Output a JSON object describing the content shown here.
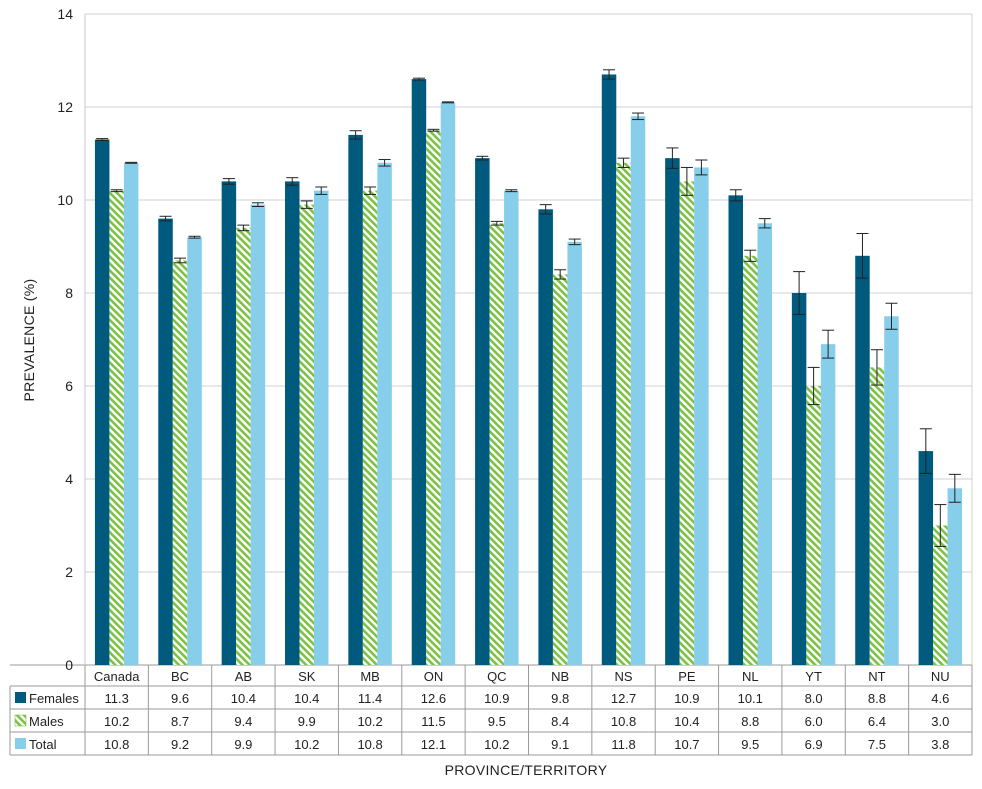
{
  "chart_data": {
    "type": "bar",
    "title": "",
    "xlabel": "PROVINCE/TERRITORY",
    "ylabel": "PREVALENCE (%)",
    "ylim": [
      0,
      14
    ],
    "yticks": [
      0,
      2,
      4,
      6,
      8,
      10,
      12,
      14
    ],
    "grid": true,
    "legend": "data-table-left",
    "categories": [
      "Canada",
      "BC",
      "AB",
      "SK",
      "MB",
      "ON",
      "QC",
      "NB",
      "NS",
      "PE",
      "NL",
      "YT",
      "NT",
      "NU"
    ],
    "series": [
      {
        "name": "Females",
        "color": "#005a7e",
        "pattern": "solid",
        "values": [
          11.3,
          9.6,
          10.4,
          10.4,
          11.4,
          12.6,
          10.9,
          9.8,
          12.7,
          10.9,
          10.1,
          8.0,
          8.8,
          4.6
        ],
        "labels": [
          "11.3",
          "9.6",
          "10.4",
          "10.4",
          "11.4",
          "12.6",
          "10.9",
          "9.8",
          "12.7",
          "10.9",
          "10.1",
          "8.0",
          "8.8",
          "4.6"
        ],
        "error": [
          0.02,
          0.05,
          0.06,
          0.08,
          0.09,
          0.02,
          0.04,
          0.1,
          0.1,
          0.22,
          0.12,
          0.46,
          0.48,
          0.48
        ]
      },
      {
        "name": "Males",
        "color": "#7cc242",
        "pattern": "hatch",
        "values": [
          10.2,
          8.7,
          9.4,
          9.9,
          10.2,
          11.5,
          9.5,
          8.4,
          10.8,
          10.4,
          8.8,
          6.0,
          6.4,
          3.0
        ],
        "labels": [
          "10.2",
          "8.7",
          "9.4",
          "9.9",
          "10.2",
          "11.5",
          "9.5",
          "8.4",
          "10.8",
          "10.4",
          "8.8",
          "6.0",
          "6.4",
          "3.0"
        ],
        "error": [
          0.02,
          0.05,
          0.06,
          0.08,
          0.08,
          0.02,
          0.04,
          0.1,
          0.1,
          0.3,
          0.12,
          0.4,
          0.38,
          0.45
        ]
      },
      {
        "name": "Total",
        "color": "#87ceeb",
        "pattern": "solid",
        "values": [
          10.8,
          9.2,
          9.9,
          10.2,
          10.8,
          12.1,
          10.2,
          9.1,
          11.8,
          10.7,
          9.5,
          6.9,
          7.5,
          3.8
        ],
        "labels": [
          "10.8",
          "9.2",
          "9.9",
          "10.2",
          "10.8",
          "12.1",
          "10.2",
          "9.1",
          "11.8",
          "10.7",
          "9.5",
          "6.9",
          "7.5",
          "3.8"
        ],
        "error": [
          0.01,
          0.02,
          0.04,
          0.08,
          0.07,
          0.01,
          0.02,
          0.06,
          0.07,
          0.16,
          0.1,
          0.3,
          0.28,
          0.3
        ]
      }
    ]
  }
}
